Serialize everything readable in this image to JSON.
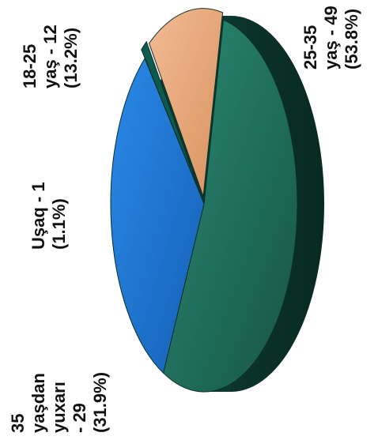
{
  "chart_data": {
    "type": "pie",
    "title": "",
    "categories": [
      "25-35 yaş",
      "35 yaşdan yuxarı",
      "Uşaq",
      "18-25 yaş"
    ],
    "values": [
      49,
      29,
      1,
      12
    ],
    "percentages": [
      53.8,
      31.9,
      1.1,
      13.2
    ],
    "colors": [
      "#1f6a58",
      "#1b74cf",
      "#0f5a4e",
      "#e9a77a"
    ],
    "labels": [
      {
        "lines": [
          "25-35",
          "yaş - 49",
          "(53.8%)"
        ]
      },
      {
        "lines": [
          "35",
          "yaşdan",
          "yuxarı",
          "- 29",
          "(31.9%)"
        ]
      },
      {
        "lines": [
          "Uşaq - 1",
          "(1.1%)"
        ]
      },
      {
        "lines": [
          "18-25",
          "yaş - 12",
          "(13.2%)"
        ]
      }
    ],
    "legend": "none",
    "three_d": true,
    "rotated": "90deg counter-clockwise"
  }
}
